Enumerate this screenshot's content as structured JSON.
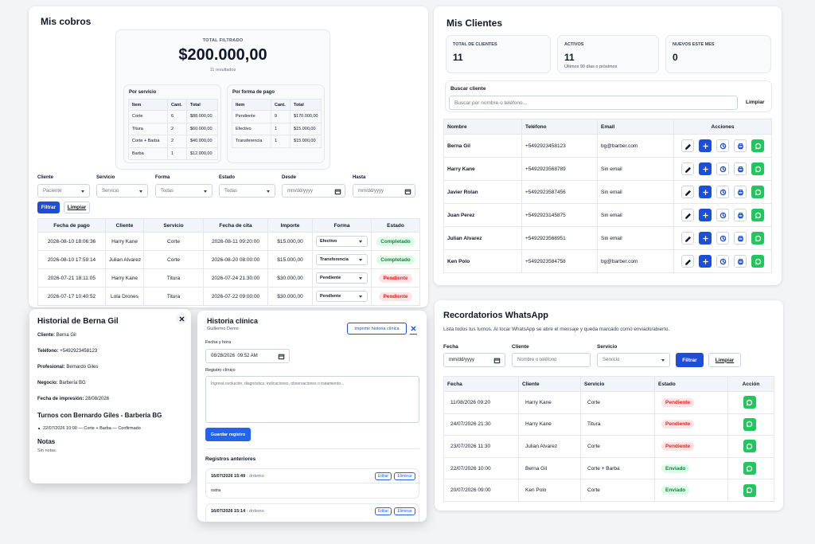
{
  "cobros": {
    "title": "Mis cobros",
    "total_label": "TOTAL FILTRADO",
    "total": "$200.000,00",
    "results": "11 resultados",
    "por_servicio": {
      "title": "Por servicio",
      "headers": [
        "Item",
        "Cant.",
        "Total"
      ],
      "rows": [
        [
          "Corte",
          "6",
          "$88.000,00"
        ],
        [
          "Titura",
          "2",
          "$60.000,00"
        ],
        [
          "Corte + Barba",
          "2",
          "$40.000,00"
        ],
        [
          "Barba",
          "1",
          "$12.000,00"
        ]
      ]
    },
    "por_forma": {
      "title": "Por forma de pago",
      "headers": [
        "Item",
        "Cant.",
        "Total"
      ],
      "rows": [
        [
          "Pendiente",
          "9",
          "$170.000,00"
        ],
        [
          "Efectivo",
          "1",
          "$15.000,00"
        ],
        [
          "Transferencia",
          "1",
          "$15.000,00"
        ]
      ]
    },
    "filters": [
      {
        "label": "Cliente",
        "value": "Paciente"
      },
      {
        "label": "Servicio",
        "value": "Servicio"
      },
      {
        "label": "Forma",
        "value": "Todas"
      },
      {
        "label": "Estado",
        "value": "Todas"
      },
      {
        "label": "Desde",
        "value": "mm/dd/yyyy"
      },
      {
        "label": "Hasta",
        "value": "mm/dd/yyyy"
      }
    ],
    "filter_button": "Filtrar",
    "clear_button": "Limpiar",
    "table": {
      "headers": [
        "Fecha de pago",
        "Cliente",
        "Servicio",
        "Fecha de cita",
        "Importe",
        "Forma",
        "Estado"
      ],
      "rows": [
        [
          "2026-08-10 18:06:36",
          "Harry Kane",
          "Corte",
          "2026-08-11 09:20:00",
          "$15.000,00",
          "Efectivo",
          "Completado"
        ],
        [
          "2026-08-10 17:59:14",
          "Julian Alvarez",
          "Corte",
          "2026-08-20 08:00:00",
          "$15.000,00",
          "Transferencia",
          "Completado"
        ],
        [
          "2026-07-21 18:11:05",
          "Harry Kane",
          "Titura",
          "2026-07-24 21:30:00",
          "$30.000,00",
          "Pendiente",
          "Pendiente"
        ],
        [
          "2026-07-17 10:40:52",
          "Lola Drones",
          "Titura",
          "2026-07-22 09:00:00",
          "$30.000,00",
          "Pendiente",
          "Pendiente"
        ]
      ]
    }
  },
  "clientes": {
    "title": "Mis Clientes",
    "stats": [
      {
        "label": "TOTAL DE CLIENTES",
        "value": "11"
      },
      {
        "label": "ACTIVOS",
        "value": "11",
        "note": "Últimos 90 días o próximos"
      },
      {
        "label": "NUEVOS ESTE MES",
        "value": "0"
      }
    ],
    "search_label": "Buscar cliente",
    "search_placeholder": "Buscar por nombre o teléfono...",
    "clear_button": "Limpiar",
    "table": {
      "headers": [
        "Nombre",
        "Teléfono",
        "Email",
        "Acciones"
      ],
      "rows": [
        [
          "Berna Gil",
          "+5492923458123",
          "bg@barber.com"
        ],
        [
          "Harry Kane",
          "+5492923568789",
          "Sin email"
        ],
        [
          "Javier Rolan",
          "+5492923587456",
          "Sin email"
        ],
        [
          "Juan Perez",
          "+5492923145875",
          "Sin email"
        ],
        [
          "Julian Alvarez",
          "+5492923568951",
          "Sin email"
        ],
        [
          "Ken Polo",
          "+5492923584758",
          "bg@barber.com"
        ]
      ]
    }
  },
  "historial": {
    "title": "Historial de Berna Gil",
    "fields": [
      {
        "label": "Cliente:",
        "value": "Berna Gil"
      },
      {
        "label": "Teléfono:",
        "value": "+5492923458123"
      },
      {
        "label": "Profesional:",
        "value": "Bernardo Giles"
      },
      {
        "label": "Negocio:",
        "value": "Barbería BG"
      },
      {
        "label": "Fecha de impresión:",
        "value": "28/08/2026"
      }
    ],
    "turnos_title": "Turnos con Bernardo Giles - Barbería BG",
    "turnos": [
      "22/07/2026 10:00 — Corte + Barba — Confirmado"
    ],
    "notas_title": "Notas",
    "notas": "Sin notas."
  },
  "historia_clinica": {
    "title": "Historia clínica",
    "subtitle": "Guillermo Demo",
    "print_button": "Imprimir historia clínica",
    "date_label": "Fecha y hora",
    "date_value": "08/28/2026  09:52 AM",
    "registro_label": "Registro clínico",
    "placeholder": "Ingresá evolución, diagnóstico, indicaciones, observaciones o tratamiento...",
    "save_button": "Guardar registro",
    "previous_title": "Registros anteriores",
    "records": [
      {
        "date": "16/07/2026 15:49",
        "author": "· drdemo",
        "text": "ostra"
      },
      {
        "date": "16/07/2026 15:14",
        "author": "· drdemo"
      }
    ],
    "edit_button": "Editar",
    "delete_button": "Eliminar"
  },
  "recordatorios": {
    "title": "Recordatorios WhatsApp",
    "description": "Lista todos tus turnos. Al tocar WhatsApp se abre el mensaje y queda marcado como enviado/abierto.",
    "filters": [
      {
        "label": "Fecha",
        "value": "mm/dd/yyyy"
      },
      {
        "label": "Cliente",
        "value": "Nombre o teléfono"
      },
      {
        "label": "Servicio",
        "value": "Servicio"
      }
    ],
    "filter_button": "Filtrar",
    "clear_button": "Limpiar",
    "table": {
      "headers": [
        "Fecha",
        "Cliente",
        "Servicio",
        "Estado",
        "Acción"
      ],
      "rows": [
        [
          "11/08/2026 09:20",
          "Harry Kane",
          "Corte",
          "Pendiente"
        ],
        [
          "24/07/2026 21:30",
          "Harry Kane",
          "Titura",
          "Pendiente"
        ],
        [
          "23/07/2026 11:30",
          "Julian Alvarez",
          "Corte",
          "Pendiente"
        ],
        [
          "22/07/2026 10:00",
          "Berna Gil",
          "Corte + Barba",
          "Enviado"
        ],
        [
          "20/07/2026 09:00",
          "Ken Polo",
          "Corte",
          "Enviado"
        ]
      ]
    }
  }
}
